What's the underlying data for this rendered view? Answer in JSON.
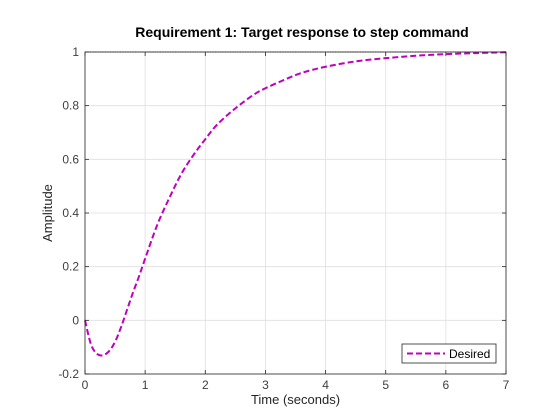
{
  "chart_data": {
    "type": "line",
    "title": "Requirement 1: Target response to step command",
    "xlabel": "Time (seconds)",
    "ylabel": "Amplitude",
    "xlim": [
      0,
      7
    ],
    "ylim": [
      -0.2,
      1
    ],
    "xticks": [
      0,
      1,
      2,
      3,
      4,
      5,
      6,
      7
    ],
    "xtick_labels": [
      "0",
      "1",
      "2",
      "3",
      "4",
      "5",
      "6",
      "7"
    ],
    "yticks": [
      -0.2,
      0,
      0.2,
      0.4,
      0.6,
      0.8,
      1
    ],
    "ytick_labels": [
      "-0.2",
      "0",
      "0.2",
      "0.4",
      "0.6",
      "0.8",
      "1"
    ],
    "grid": true,
    "legend_position": "bottom-right",
    "reference_line": {
      "y": 1,
      "style": "dotted",
      "color": "#000000"
    },
    "series": [
      {
        "name": "Desired",
        "color": "#bf00bf",
        "style": "dashed",
        "x": [
          0,
          0.1,
          0.2,
          0.3,
          0.4,
          0.5,
          0.6,
          0.7,
          0.8,
          0.9,
          1.0,
          1.2,
          1.4,
          1.6,
          1.8,
          2.0,
          2.2,
          2.5,
          2.8,
          3.0,
          3.3,
          3.6,
          4.0,
          4.5,
          5.0,
          5.5,
          6.0,
          6.5,
          7.0
        ],
        "y": [
          0,
          -0.09,
          -0.125,
          -0.13,
          -0.115,
          -0.08,
          -0.025,
          0.04,
          0.105,
          0.165,
          0.23,
          0.355,
          0.455,
          0.545,
          0.615,
          0.675,
          0.73,
          0.79,
          0.84,
          0.865,
          0.895,
          0.922,
          0.945,
          0.965,
          0.977,
          0.986,
          0.992,
          0.996,
          0.999
        ]
      }
    ]
  }
}
